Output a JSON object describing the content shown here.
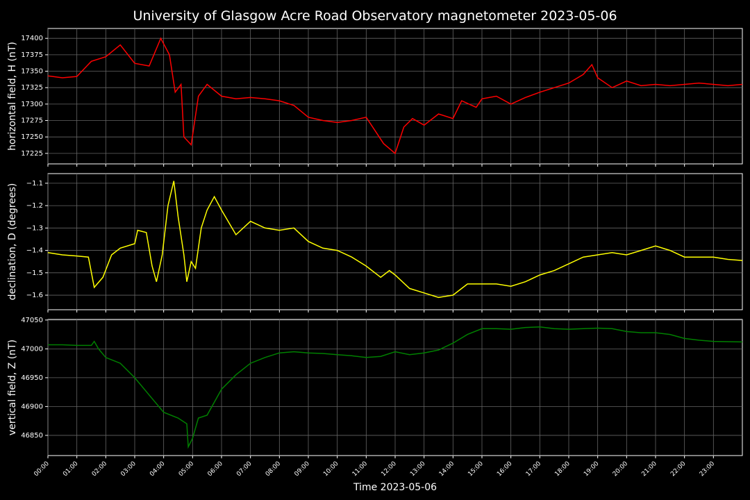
{
  "title": "University of Glasgow Acre Road Observatory magnetometer 2023-05-06",
  "x_axis": {
    "label": "Time 2023-05-06",
    "xlim": [
      0,
      24
    ],
    "grid": true,
    "xticks": [
      {
        "value": 0,
        "label": "00:00"
      },
      {
        "value": 1,
        "label": "01:00"
      },
      {
        "value": 2,
        "label": "02:00"
      },
      {
        "value": 3,
        "label": "03:00"
      },
      {
        "value": 4,
        "label": "04:00"
      },
      {
        "value": 5,
        "label": "05:00"
      },
      {
        "value": 6,
        "label": "06:00"
      },
      {
        "value": 7,
        "label": "07:00"
      },
      {
        "value": 8,
        "label": "08:00"
      },
      {
        "value": 9,
        "label": "09:00"
      },
      {
        "value": 10,
        "label": "10:00"
      },
      {
        "value": 11,
        "label": "11:00"
      },
      {
        "value": 12,
        "label": "12:00"
      },
      {
        "value": 13,
        "label": "13:00"
      },
      {
        "value": 14,
        "label": "14:00"
      },
      {
        "value": 15,
        "label": "15:00"
      },
      {
        "value": 16,
        "label": "16:00"
      },
      {
        "value": 17,
        "label": "17:00"
      },
      {
        "value": 18,
        "label": "18:00"
      },
      {
        "value": 19,
        "label": "19:00"
      },
      {
        "value": 20,
        "label": "20:00"
      },
      {
        "value": 21,
        "label": "21:00"
      },
      {
        "value": 22,
        "label": "22:00"
      },
      {
        "value": 23,
        "label": "23:00"
      }
    ]
  },
  "chart_data": [
    {
      "type": "line",
      "ylabel": "horizontal field, H (nT)",
      "color": "#ff0000",
      "ylim": [
        17209,
        17415
      ],
      "yticks": [
        17225,
        17250,
        17275,
        17300,
        17325,
        17350,
        17375,
        17400
      ],
      "grid": true,
      "x": [
        0,
        0.5,
        1,
        1.5,
        2,
        2.5,
        3,
        3.5,
        3.9,
        4.2,
        4.4,
        4.6,
        4.7,
        4.95,
        5.2,
        5.5,
        6,
        6.5,
        7,
        7.5,
        8,
        8.5,
        9,
        9.5,
        10,
        10.5,
        11,
        11.3,
        11.6,
        12,
        12.3,
        12.6,
        13,
        13.5,
        14,
        14.3,
        14.8,
        15,
        15.5,
        16,
        16.5,
        17,
        17.5,
        18,
        18.5,
        18.8,
        19,
        19.5,
        20,
        20.5,
        21,
        21.5,
        22,
        22.5,
        23,
        23.5,
        24
      ],
      "values": [
        17343,
        17340,
        17342,
        17365,
        17372,
        17390,
        17362,
        17358,
        17400,
        17375,
        17318,
        17330,
        17250,
        17238,
        17312,
        17330,
        17312,
        17308,
        17310,
        17308,
        17305,
        17298,
        17280,
        17275,
        17272,
        17275,
        17280,
        17260,
        17240,
        17225,
        17265,
        17278,
        17268,
        17285,
        17278,
        17305,
        17295,
        17308,
        17312,
        17300,
        17310,
        17318,
        17325,
        17332,
        17345,
        17360,
        17340,
        17325,
        17335,
        17328,
        17330,
        17328,
        17330,
        17332,
        17330,
        17328,
        17330
      ]
    },
    {
      "type": "line",
      "ylabel": "declination, D (degrees)",
      "color": "#ffff00",
      "ylim": [
        -1.665,
        -1.057
      ],
      "grid": true,
      "yticks": [
        {
          "value": -1.6,
          "label": "−1.6"
        },
        {
          "value": -1.5,
          "label": "−1.5"
        },
        {
          "value": -1.4,
          "label": "−1.4"
        },
        {
          "value": -1.3,
          "label": "−1.3"
        },
        {
          "value": -1.2,
          "label": "−1.2"
        },
        {
          "value": -1.1,
          "label": "−1.1"
        }
      ],
      "x": [
        0,
        0.5,
        1,
        1.4,
        1.6,
        1.9,
        2.2,
        2.5,
        3,
        3.1,
        3.4,
        3.6,
        3.75,
        3.95,
        4.15,
        4.35,
        4.5,
        4.7,
        4.8,
        4.95,
        5.1,
        5.3,
        5.5,
        5.75,
        6,
        6.5,
        7,
        7.5,
        8,
        8.5,
        9,
        9.5,
        10,
        10.5,
        11,
        11.5,
        11.8,
        12,
        12.5,
        13,
        13.5,
        14,
        14.5,
        15,
        15.5,
        16,
        16.5,
        17,
        17.5,
        18,
        18.5,
        19,
        19.5,
        20,
        20.5,
        21,
        21.5,
        22,
        22.5,
        23,
        23.5,
        24
      ],
      "values": [
        -1.41,
        -1.42,
        -1.425,
        -1.43,
        -1.565,
        -1.52,
        -1.42,
        -1.39,
        -1.37,
        -1.31,
        -1.32,
        -1.47,
        -1.54,
        -1.42,
        -1.2,
        -1.09,
        -1.25,
        -1.42,
        -1.54,
        -1.45,
        -1.48,
        -1.3,
        -1.22,
        -1.16,
        -1.22,
        -1.33,
        -1.27,
        -1.3,
        -1.31,
        -1.3,
        -1.36,
        -1.39,
        -1.4,
        -1.43,
        -1.47,
        -1.52,
        -1.49,
        -1.51,
        -1.57,
        -1.59,
        -1.61,
        -1.6,
        -1.55,
        -1.55,
        -1.55,
        -1.56,
        -1.54,
        -1.51,
        -1.49,
        -1.46,
        -1.43,
        -1.42,
        -1.41,
        -1.42,
        -1.4,
        -1.38,
        -1.4,
        -1.43,
        -1.43,
        -1.43,
        -1.44,
        -1.445
      ]
    },
    {
      "type": "line",
      "ylabel": "vertical field, Z (nT)",
      "color": "#008000",
      "ylim": [
        46815,
        47051
      ],
      "yticks": [
        46850,
        46900,
        46950,
        47000,
        47050
      ],
      "grid": true,
      "x": [
        0,
        0.5,
        1,
        1.5,
        1.6,
        1.75,
        2,
        2.5,
        3,
        3.5,
        4,
        4.5,
        4.8,
        4.85,
        5,
        5.2,
        5.5,
        6,
        6.5,
        7,
        7.5,
        8,
        8.5,
        9,
        9.5,
        10,
        10.5,
        11,
        11.5,
        12,
        12.5,
        13,
        13.5,
        14,
        14.5,
        15,
        15.5,
        16,
        16.5,
        17,
        17.5,
        18,
        18.5,
        19,
        19.5,
        20,
        20.5,
        21,
        21.5,
        22,
        22.5,
        23,
        24
      ],
      "values": [
        47007,
        47007,
        47006,
        47006,
        47013,
        47000,
        46985,
        46975,
        46950,
        46920,
        46890,
        46880,
        46870,
        46830,
        46845,
        46880,
        46885,
        46930,
        46955,
        46975,
        46985,
        46993,
        46995,
        46993,
        46992,
        46990,
        46988,
        46985,
        46987,
        46995,
        46990,
        46993,
        46998,
        47010,
        47025,
        47035,
        47035,
        47034,
        47037,
        47038,
        47035,
        47034,
        47035,
        47036,
        47035,
        47030,
        47028,
        47028,
        47025,
        47018,
        47015,
        47013,
        47012
      ]
    }
  ]
}
